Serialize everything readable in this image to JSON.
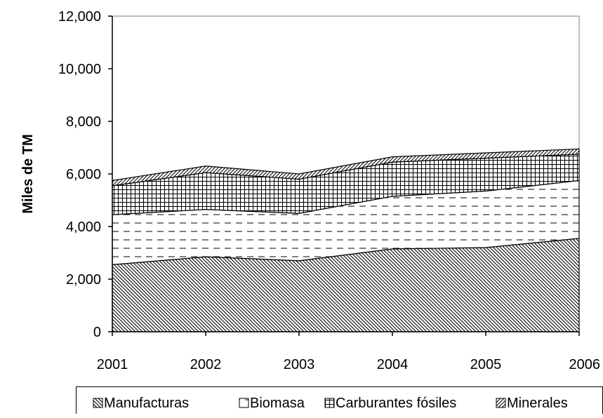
{
  "chart_data": {
    "type": "area",
    "stacked": true,
    "title": "",
    "xlabel": "",
    "ylabel": "Miles de TM",
    "x": [
      "2001",
      "2002",
      "2003",
      "2004",
      "2005",
      "2006"
    ],
    "ylim": [
      0,
      12000
    ],
    "yticks": [
      0,
      2000,
      4000,
      6000,
      8000,
      10000,
      12000
    ],
    "ytick_labels": [
      "0",
      "2,000",
      "4,000",
      "6,000",
      "8,000",
      "10,000",
      "12,000"
    ],
    "grid": false,
    "legend_position": "bottom",
    "series": [
      {
        "name": "Manufacturas",
        "values": [
          2550,
          2850,
          2700,
          3150,
          3200,
          3550
        ],
        "pattern": "diagonal-dense"
      },
      {
        "name": "Biomasa",
        "values": [
          1900,
          1800,
          1800,
          2000,
          2150,
          2200
        ],
        "pattern": "dashed-horizontal"
      },
      {
        "name": "Carburantes fósiles",
        "values": [
          1100,
          1400,
          1300,
          1300,
          1250,
          1000
        ],
        "pattern": "grid"
      },
      {
        "name": "Minerales",
        "values": [
          200,
          250,
          200,
          200,
          200,
          200
        ],
        "pattern": "diagonal-sparse"
      }
    ],
    "legend_labels": [
      "Manufacturas",
      "Biomasa",
      "Carburantes fósiles",
      "Minerales"
    ]
  }
}
